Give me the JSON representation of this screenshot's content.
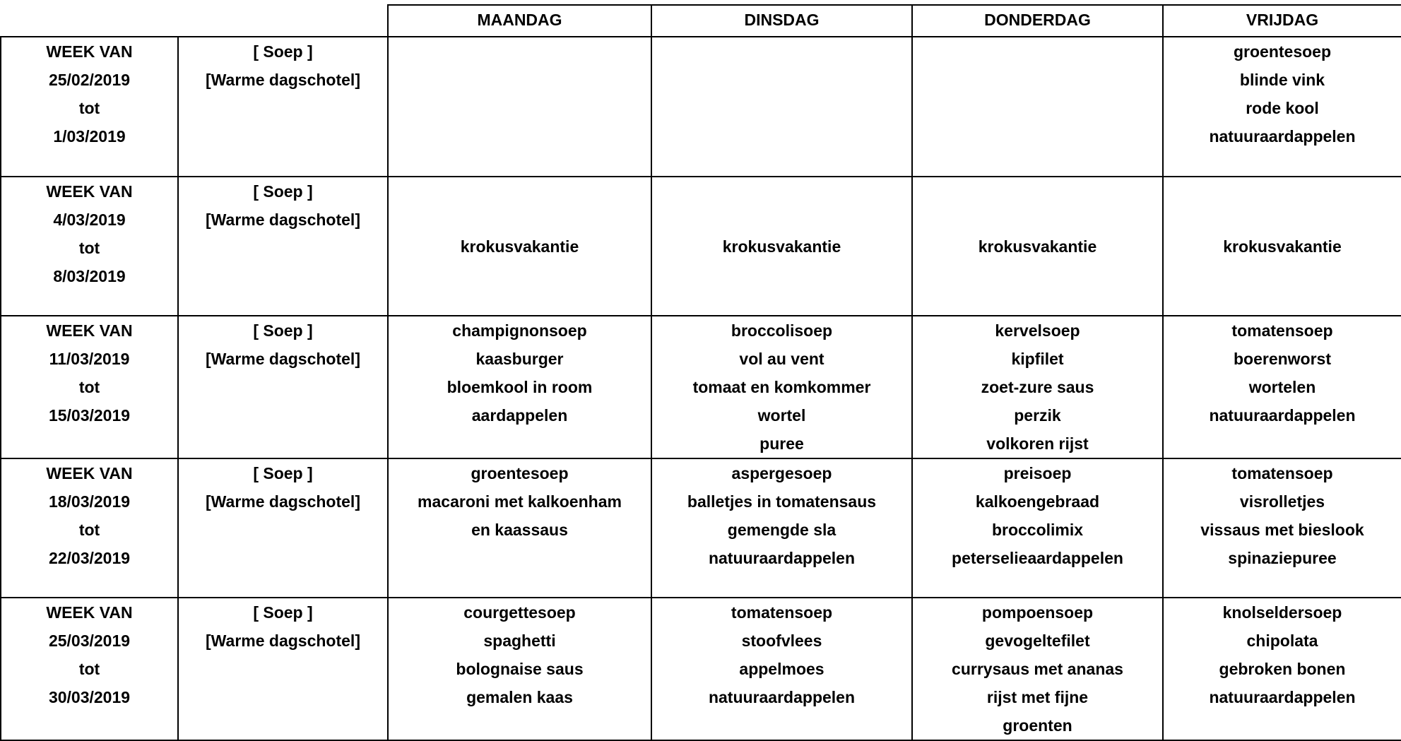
{
  "header": {
    "days": [
      "MAANDAG",
      "DINSDAG",
      "DONDERDAG",
      "VRIJDAG"
    ]
  },
  "rows": [
    {
      "week": [
        "WEEK VAN",
        "25/02/2019",
        "tot",
        "1/03/2019"
      ],
      "labels": [
        "[ Soep ]",
        "[Warme dagschotel]"
      ],
      "cells": [
        [],
        [],
        [],
        [
          "groentesoep",
          "blinde vink",
          "rode kool",
          "natuuraardappelen"
        ]
      ]
    },
    {
      "week": [
        "WEEK VAN",
        "4/03/2019",
        "tot",
        "8/03/2019"
      ],
      "labels": [
        "[ Soep ]",
        "[Warme dagschotel]"
      ],
      "cells": [
        [
          "krokusvakantie"
        ],
        [
          "krokusvakantie"
        ],
        [
          "krokusvakantie"
        ],
        [
          "krokusvakantie"
        ]
      ]
    },
    {
      "week": [
        "WEEK VAN",
        "11/03/2019",
        "tot",
        "15/03/2019"
      ],
      "labels": [
        "[ Soep ]",
        "[Warme dagschotel]"
      ],
      "cells": [
        [
          "champignonsoep",
          "kaasburger",
          "bloemkool in room",
          "aardappelen"
        ],
        [
          "broccolisoep",
          "vol au vent",
          "tomaat en komkommer",
          "wortel",
          "puree"
        ],
        [
          "kervelsoep",
          "kipfilet",
          "zoet-zure saus",
          "perzik",
          "volkoren rijst"
        ],
        [
          "tomatensoep",
          "boerenworst",
          "wortelen",
          "natuuraardappelen"
        ]
      ]
    },
    {
      "week": [
        "WEEK VAN",
        "18/03/2019",
        "tot",
        "22/03/2019"
      ],
      "labels": [
        "[ Soep ]",
        "[Warme dagschotel]"
      ],
      "cells": [
        [
          "groentesoep",
          "macaroni met kalkoenham",
          "en kaassaus"
        ],
        [
          "aspergesoep",
          "balletjes in tomatensaus",
          "gemengde sla",
          "natuuraardappelen"
        ],
        [
          "preisoep",
          "kalkoengebraad",
          "broccolimix",
          "peterselieaardappelen"
        ],
        [
          "tomatensoep",
          "visrolletjes",
          "vissaus met bieslook",
          "spinaziepuree"
        ]
      ]
    },
    {
      "week": [
        "WEEK VAN",
        "25/03/2019",
        "tot",
        "30/03/2019"
      ],
      "labels": [
        "[ Soep ]",
        "[Warme dagschotel]"
      ],
      "cells": [
        [
          "courgettesoep",
          "spaghetti",
          "bolognaise saus",
          "gemalen kaas"
        ],
        [
          "tomatensoep",
          "stoofvlees",
          "appelmoes",
          "natuuraardappelen"
        ],
        [
          "pompoensoep",
          "gevogeltefilet",
          "currysaus met ananas",
          "rijst met fijne",
          "groenten"
        ],
        [
          "knolseldersoep",
          "chipolata",
          "gebroken bonen",
          "natuuraardappelen"
        ]
      ]
    }
  ]
}
